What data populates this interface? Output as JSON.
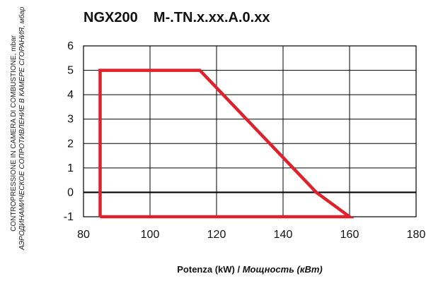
{
  "title": "NGX200    M-.TN.x.xx.A.0.xx",
  "chart_data": {
    "type": "line",
    "xlabel_it": "Potenza (kW) / ",
    "xlabel_ru": "Мощность (кВт)",
    "ylabel_it": "CONTROPRESSIONE IN CAMERA DI COMBUSTIONE, mbar",
    "ylabel_ru": "АЭРОДИНАМИЧЕСКОЕ СОПРОТИВЛЕНИЕ В КАМЕРЕ СГОРАНИЯ, мбар",
    "xlim": [
      80,
      180
    ],
    "ylim": [
      -1,
      6
    ],
    "xticks": [
      "80",
      "100",
      "120",
      "140",
      "160",
      "180"
    ],
    "yticks": [
      "-1",
      "0",
      "1",
      "2",
      "3",
      "4",
      "5",
      "6"
    ],
    "grid": true,
    "series": [
      {
        "color": "#e0202a",
        "x": [
          85,
          85,
          115,
          150,
          160,
          85
        ],
        "y": [
          -1,
          5,
          5,
          0,
          -1,
          -1
        ]
      }
    ]
  }
}
